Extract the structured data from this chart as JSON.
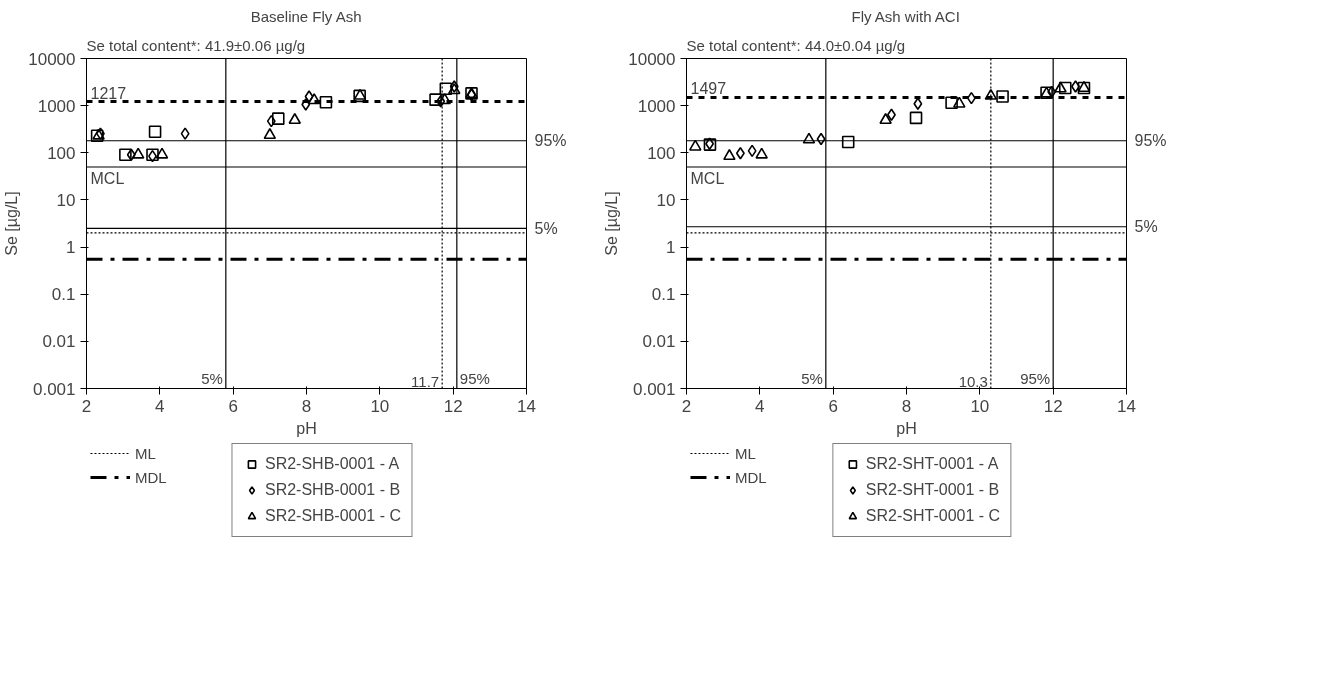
{
  "chart_data": [
    {
      "type": "scatter",
      "title": "Baseline Fly Ash",
      "subtitle": "Se total content*: 41.9±0.06 µg/g",
      "xlabel": "pH",
      "ylabel": "Se [µg/L]",
      "log": "y",
      "grid": false,
      "legend": "bottom",
      "xlim": [
        2,
        14
      ],
      "xticks": [
        2,
        4,
        6,
        8,
        10,
        12,
        14
      ],
      "ylim": [
        0.001,
        10000
      ],
      "yticks": [
        0.001,
        0.01,
        0.1,
        1,
        10,
        100,
        1000,
        10000
      ],
      "series": [
        {
          "name": "SR2-SHB-0001 - A",
          "color": "#000000",
          "marker": "square",
          "x": [
            2.29,
            3.87,
            3.06,
            3.8,
            7.23,
            8.53,
            9.45,
            11.52,
            11.8,
            12.5
          ],
          "values": [
            230,
            280,
            91,
            91,
            530,
            1180,
            1610,
            1340,
            2290,
            1820
          ]
        },
        {
          "name": "SR2-SHB-0001 - B",
          "color": "#000000",
          "marker": "diamond",
          "x": [
            2.38,
            4.69,
            3.22,
            3.8,
            7.04,
            8.07,
            7.98,
            11.66,
            12.03,
            12.5
          ],
          "values": [
            255,
            255,
            91,
            85,
            470,
            1560,
            1060,
            1240,
            2550,
            1690
          ]
        },
        {
          "name": "SR2-SHB-0001 - C",
          "color": "#000000",
          "marker": "triangle",
          "x": [
            2.33,
            3.41,
            4.06,
            7.0,
            7.68,
            8.21,
            9.46,
            11.77,
            12.03,
            12.5
          ],
          "values": [
            230,
            91,
            91,
            237,
            494,
            1300,
            1610,
            1300,
            2120,
            1750
          ]
        }
      ],
      "ref_lines": [
        {
          "axis": "y",
          "value": 1217,
          "label": "1217",
          "line_style": "dashed"
        },
        {
          "axis": "y",
          "value": 180,
          "line_style": "solid"
        },
        {
          "axis": "y",
          "value": 50,
          "label": "MCL",
          "line_style": "solid"
        },
        {
          "axis": "y",
          "value": 2.5,
          "line_style": "solid"
        },
        {
          "axis": "y",
          "value": 2,
          "label": "ML",
          "line_style": "dotted"
        },
        {
          "axis": "y",
          "value": 0.55,
          "label": "MDL",
          "line_style": "dashdot"
        },
        {
          "axis": "x",
          "value": 5.8,
          "line_style": "solid"
        },
        {
          "axis": "x",
          "value": 11.7,
          "label": "11.7",
          "line_style": "dotted"
        },
        {
          "axis": "x",
          "value": 12.1,
          "line_style": "solid"
        }
      ],
      "annotations": [
        {
          "text": "95%",
          "x": 14,
          "y": 180
        },
        {
          "text": "5%",
          "x": 14,
          "y": 2.5
        },
        {
          "text": "5%",
          "x": 5.8,
          "y": 0.001
        },
        {
          "text": "95%",
          "x": 12.1,
          "y": 0.001
        }
      ]
    },
    {
      "type": "scatter",
      "title": "Fly Ash with ACI",
      "subtitle": "Se total content*: 44.0±0.04 µg/g",
      "xlabel": "pH",
      "ylabel": "Se [µg/L]",
      "log": "y",
      "grid": false,
      "legend": "bottom",
      "xlim": [
        2,
        14
      ],
      "xticks": [
        2,
        4,
        6,
        8,
        10,
        12,
        14
      ],
      "ylim": [
        0.001,
        10000
      ],
      "yticks": [
        0.001,
        0.01,
        0.1,
        1,
        10,
        100,
        1000,
        10000
      ],
      "series": [
        {
          "name": "SR2-SHT-0001 - A",
          "color": "#000000",
          "marker": "square",
          "x": [
            2.64,
            6.41,
            8.26,
            9.23,
            10.62,
            11.82,
            12.33,
            12.84
          ],
          "values": [
            149,
            169,
            550,
            1150,
            1560,
            1880,
            2360,
            2360
          ]
        },
        {
          "name": "SR2-SHT-0001 - B",
          "color": "#000000",
          "marker": "diamond",
          "x": [
            2.63,
            3.47,
            3.79,
            5.67,
            7.59,
            8.31,
            9.77,
            11.96,
            12.61
          ],
          "values": [
            156,
            98,
            110,
            196,
            641,
            1096,
            1445,
            1960,
            2550
          ]
        },
        {
          "name": "SR2-SHT-0001 - C",
          "color": "#000000",
          "marker": "triangle",
          "x": [
            2.24,
            3.17,
            4.05,
            5.34,
            7.43,
            9.44,
            10.3,
            11.82,
            12.2,
            12.84
          ],
          "values": [
            134,
            85,
            91,
            190,
            494,
            1096,
            1610,
            1790,
            2300,
            2360
          ]
        }
      ],
      "ref_lines": [
        {
          "axis": "y",
          "value": 1497,
          "label": "1497",
          "line_style": "dashed"
        },
        {
          "axis": "y",
          "value": 180,
          "line_style": "solid"
        },
        {
          "axis": "y",
          "value": 50,
          "label": "MCL",
          "line_style": "solid"
        },
        {
          "axis": "y",
          "value": 2.7,
          "line_style": "solid"
        },
        {
          "axis": "y",
          "value": 2,
          "label": "ML",
          "line_style": "dotted"
        },
        {
          "axis": "y",
          "value": 0.55,
          "label": "MDL",
          "line_style": "dashdot"
        },
        {
          "axis": "x",
          "value": 5.8,
          "line_style": "solid"
        },
        {
          "axis": "x",
          "value": 10.3,
          "label": "10.3",
          "line_style": "dotted"
        },
        {
          "axis": "x",
          "value": 12.0,
          "line_style": "solid"
        }
      ],
      "annotations": [
        {
          "text": "95%",
          "x": 14,
          "y": 180
        },
        {
          "text": "5%",
          "x": 14,
          "y": 2.7
        },
        {
          "text": "5%",
          "x": 5.8,
          "y": 0.001
        },
        {
          "text": "95%",
          "x": 12.0,
          "y": 0.001
        }
      ]
    }
  ]
}
